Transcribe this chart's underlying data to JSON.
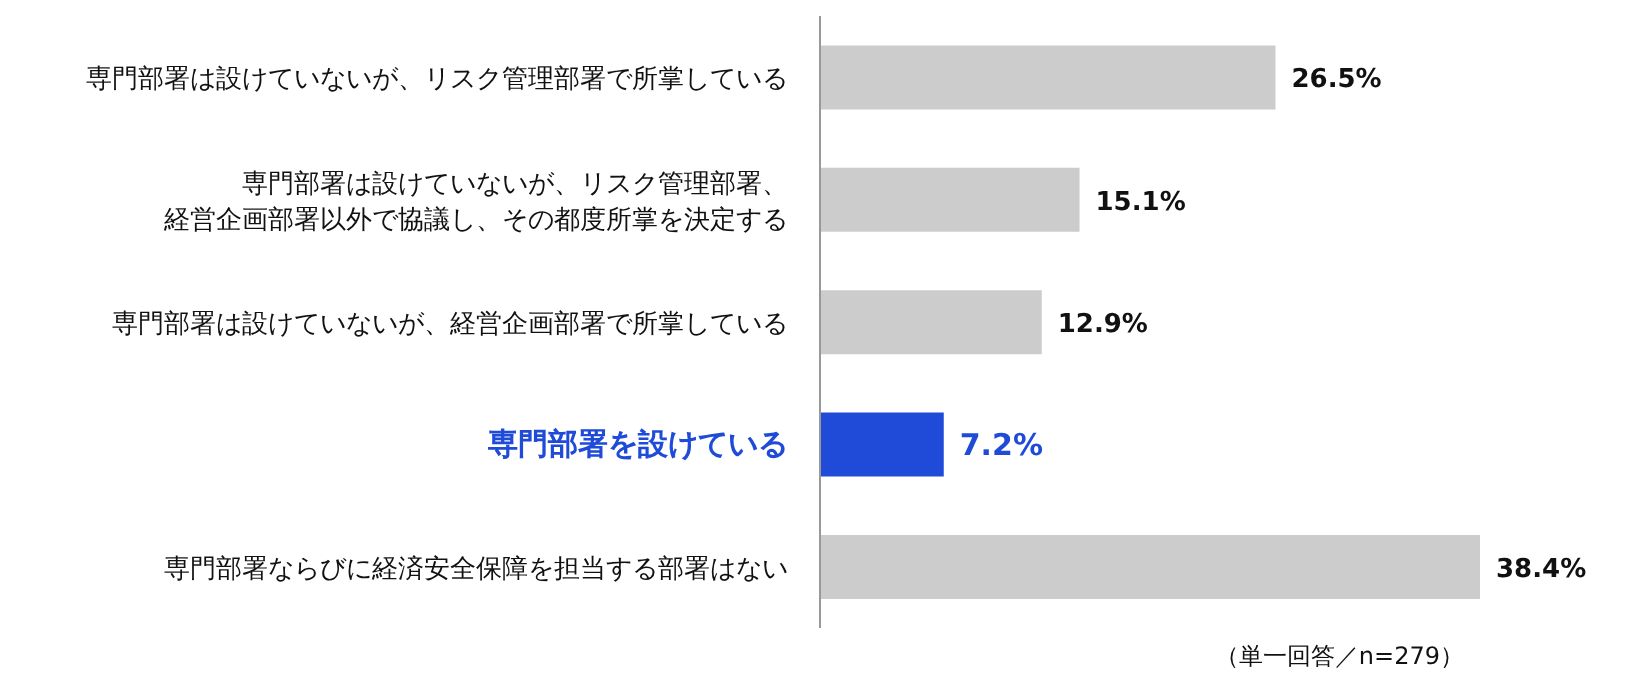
{
  "chart_data": {
    "type": "bar",
    "orientation": "horizontal",
    "categories": [
      "専門部署は設けていないが、リスク管理部署で所掌している",
      "専門部署は設けていないが、リスク管理部署、経営企画部署以外で協議し、その都度所掌を決定する",
      "専門部署は設けていないが、経営企画部署で所掌している",
      "専門部署を設けている",
      "専門部署ならびに経済安全保障を担当する部署はない"
    ],
    "values": [
      26.5,
      15.1,
      12.9,
      7.2,
      38.4
    ],
    "colors": [
      "#cccccc",
      "#cccccc",
      "#cccccc",
      "#1f4bd8",
      "#cccccc"
    ],
    "value_labels": [
      "26.5%",
      "15.1%",
      "12.9%",
      "7.2%",
      "38.4%"
    ],
    "annotations": [
      "（単一回答／n=279）"
    ]
  }
}
